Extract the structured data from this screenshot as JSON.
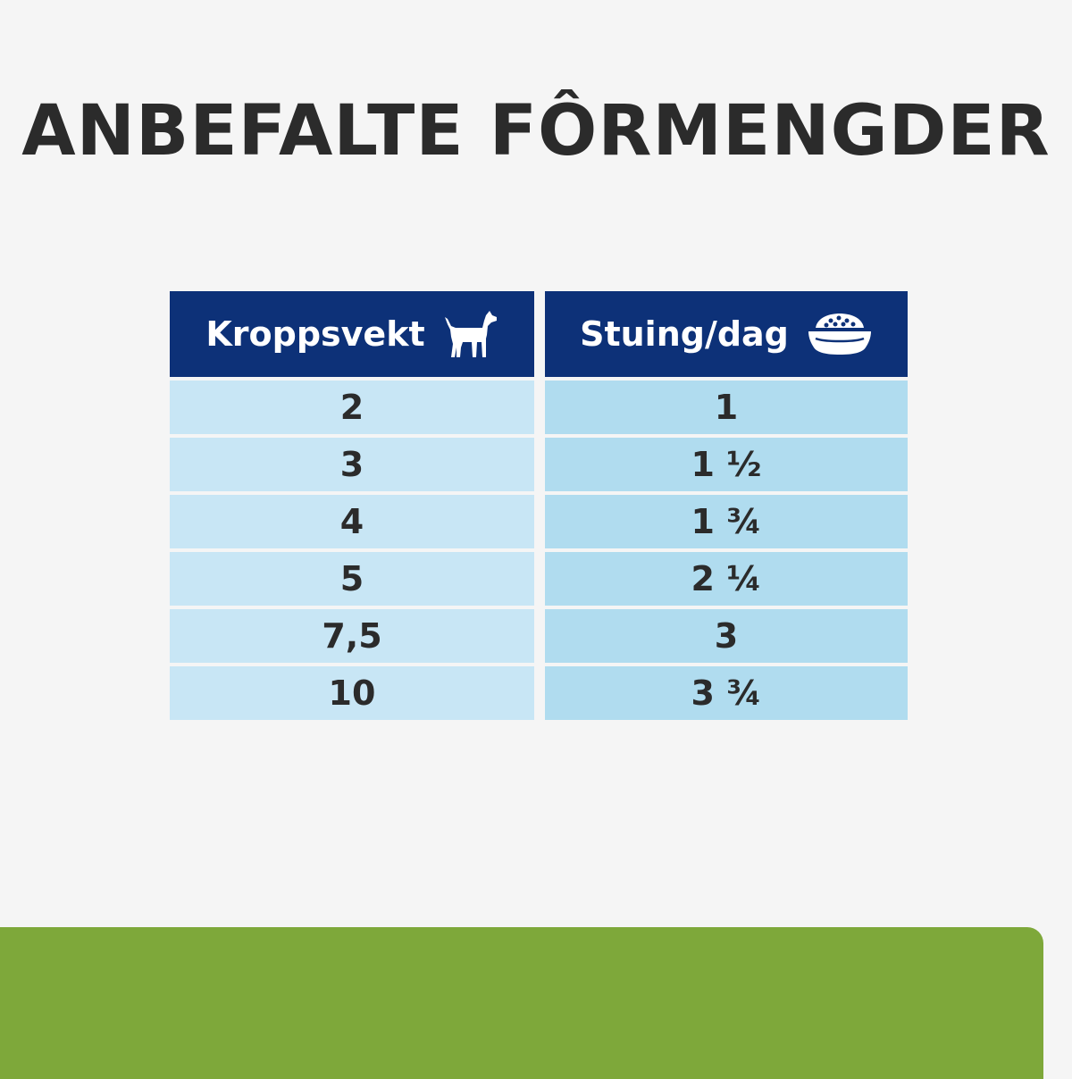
{
  "title": "ANBEFALTE FÔRMENGDER",
  "table": {
    "headers": [
      {
        "label": "Kroppsvekt",
        "icon": "dog-icon"
      },
      {
        "label": "Stuing/dag",
        "icon": "food-bowl-icon"
      }
    ],
    "rows": [
      {
        "weight": "2",
        "amount": "1"
      },
      {
        "weight": "3",
        "amount": "1 ½"
      },
      {
        "weight": "4",
        "amount": "1 ¾"
      },
      {
        "weight": "5",
        "amount": "2 ¼"
      },
      {
        "weight": "7,5",
        "amount": "3"
      },
      {
        "weight": "10",
        "amount": "3 ¾"
      }
    ]
  },
  "colors": {
    "header_bg": "#0d3178",
    "cell_left": "#c8e6f5",
    "cell_right": "#b0dcef",
    "band": "#7ea83a"
  }
}
